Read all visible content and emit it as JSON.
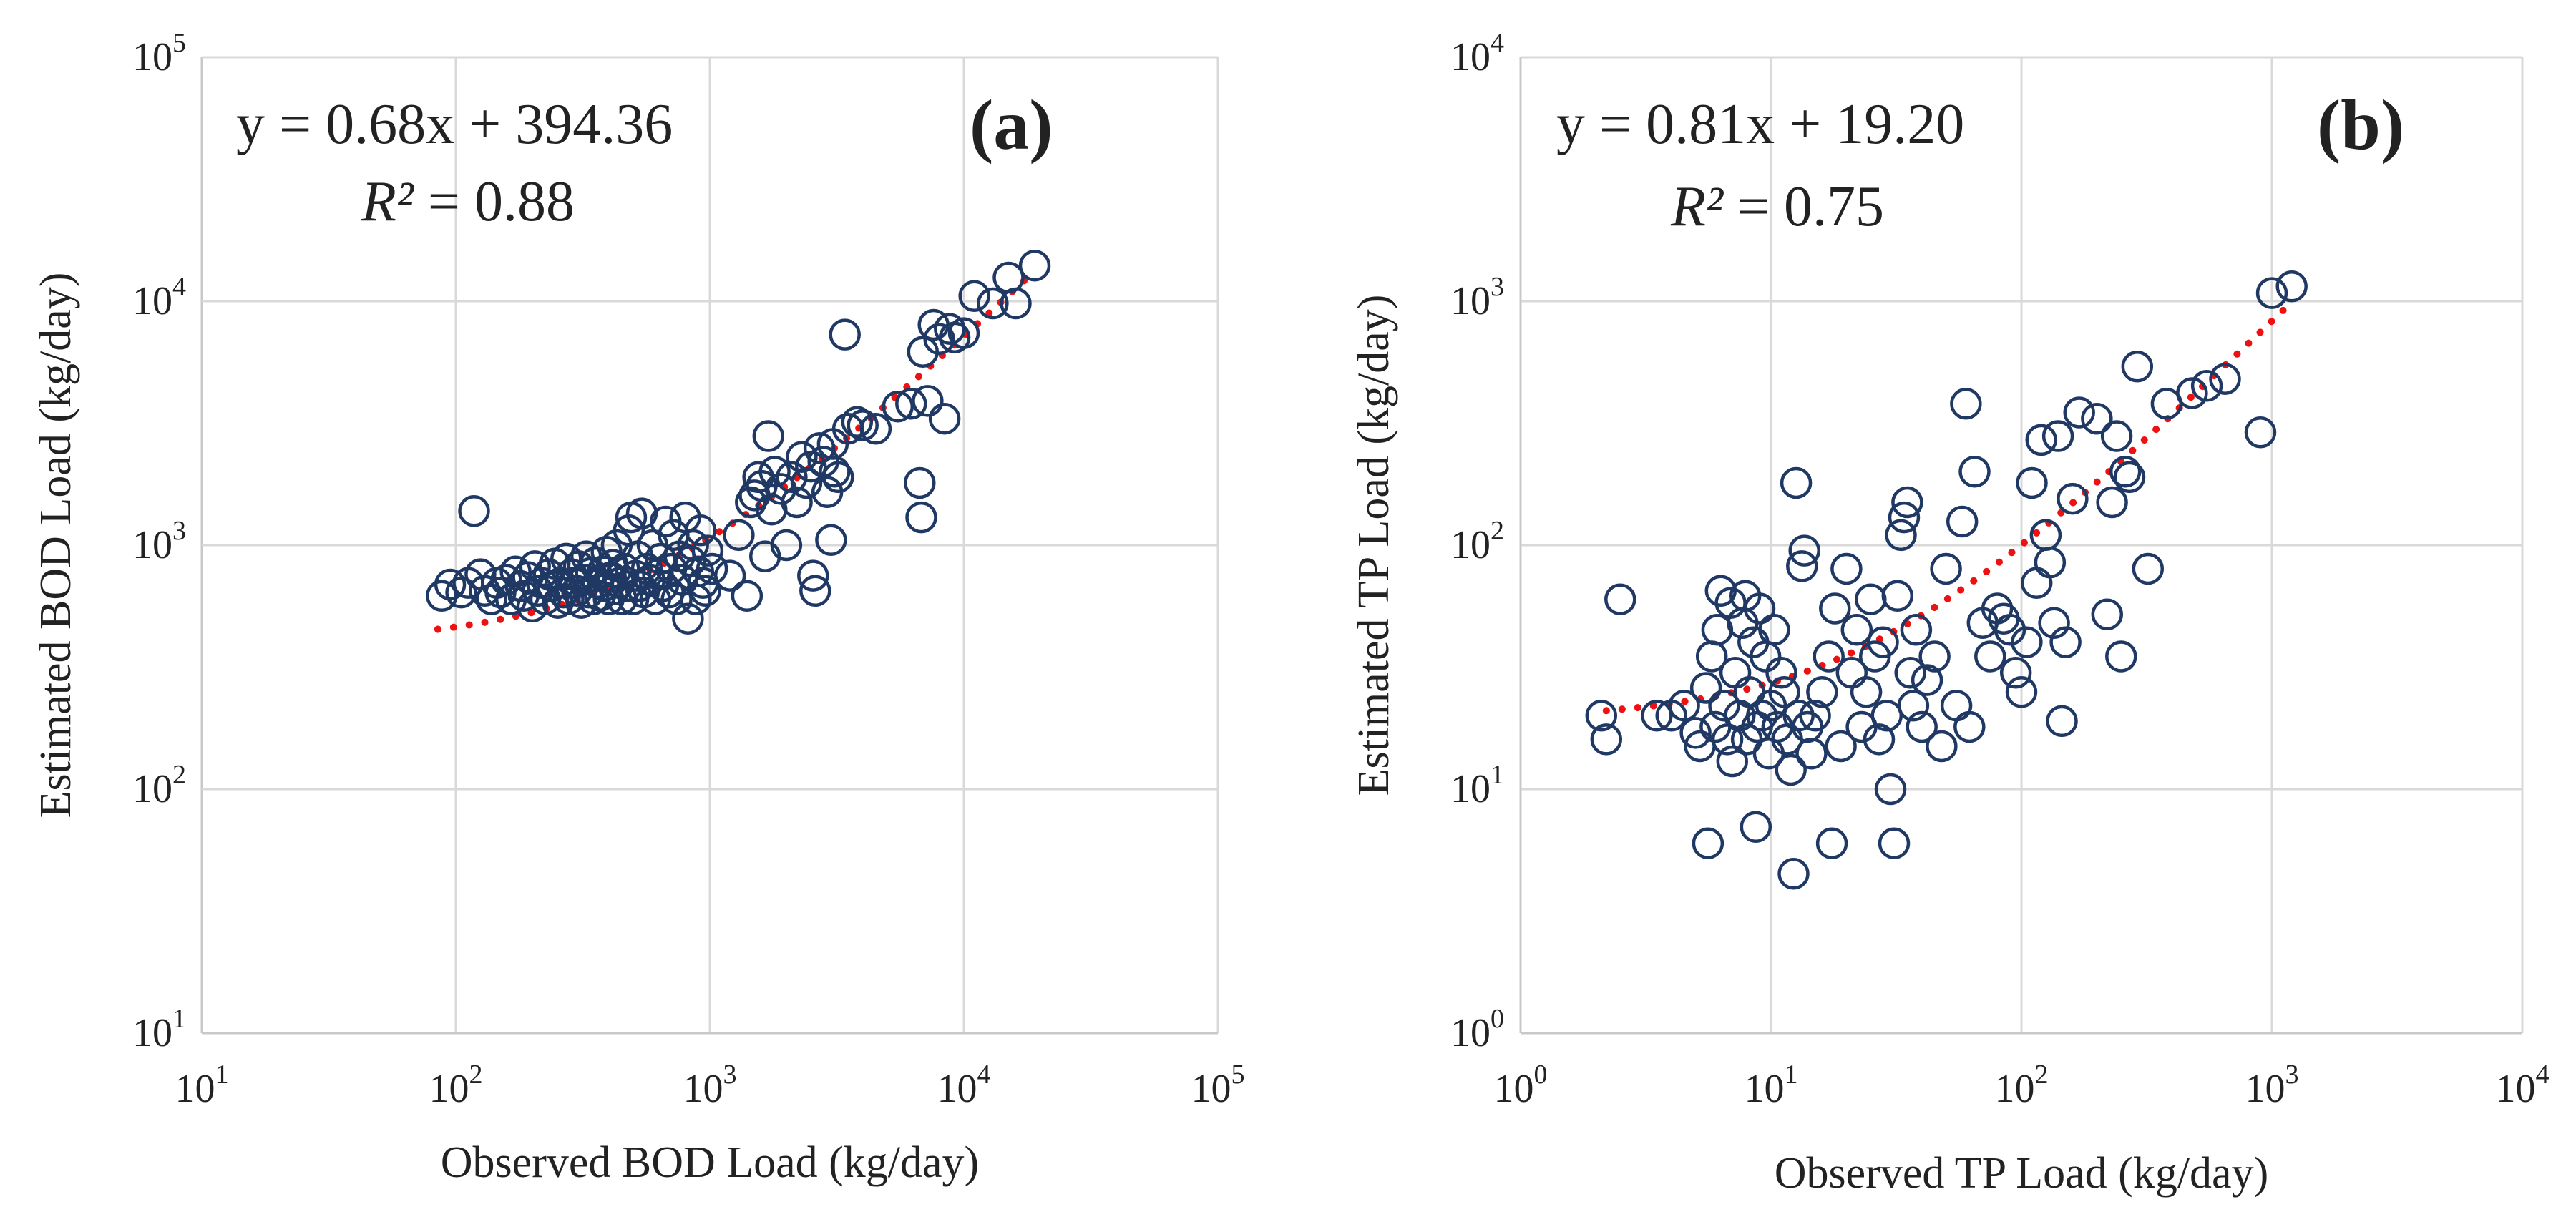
{
  "chart_data": [
    {
      "type": "scatter",
      "xscale": "log",
      "yscale": "log",
      "xlim": [
        10,
        100000
      ],
      "ylim": [
        10,
        100000
      ],
      "xticks": [
        {
          "base": "10",
          "exp": "1"
        },
        {
          "base": "10",
          "exp": "2"
        },
        {
          "base": "10",
          "exp": "3"
        },
        {
          "base": "10",
          "exp": "4"
        },
        {
          "base": "10",
          "exp": "5"
        }
      ],
      "yticks": [
        {
          "base": "10",
          "exp": "1"
        },
        {
          "base": "10",
          "exp": "2"
        },
        {
          "base": "10",
          "exp": "3"
        },
        {
          "base": "10",
          "exp": "4"
        },
        {
          "base": "10",
          "exp": "5"
        }
      ],
      "xlabel": "Observed BOD Load (kg/day)",
      "ylabel": "Estimated BOD Load (kg/day)",
      "panel_label": "(a)",
      "equation": "y = 0.68x + 394.36",
      "r2_symbol": "R²",
      "r2_value": " = 0.88",
      "grid": true,
      "marker_color": "#1f3864",
      "trend_color": "#ee1111",
      "trendline": {
        "slope": 0.68,
        "intercept": 394.36,
        "x_range": [
          85,
          19000
        ]
      },
      "points": [
        [
          88,
          620
        ],
        [
          95,
          690
        ],
        [
          105,
          640
        ],
        [
          112,
          700
        ],
        [
          118,
          1380
        ],
        [
          125,
          760
        ],
        [
          130,
          650
        ],
        [
          138,
          600
        ],
        [
          145,
          700
        ],
        [
          150,
          640
        ],
        [
          158,
          720
        ],
        [
          165,
          600
        ],
        [
          172,
          780
        ],
        [
          180,
          680
        ],
        [
          185,
          620
        ],
        [
          192,
          740
        ],
        [
          200,
          560
        ],
        [
          205,
          820
        ],
        [
          210,
          650
        ],
        [
          218,
          700
        ],
        [
          225,
          600
        ],
        [
          232,
          760
        ],
        [
          240,
          680
        ],
        [
          245,
          840
        ],
        [
          252,
          580
        ],
        [
          258,
          700
        ],
        [
          265,
          640
        ],
        [
          272,
          880
        ],
        [
          278,
          600
        ],
        [
          285,
          760
        ],
        [
          292,
          700
        ],
        [
          300,
          650
        ],
        [
          305,
          820
        ],
        [
          312,
          580
        ],
        [
          320,
          720
        ],
        [
          326,
          900
        ],
        [
          333,
          640
        ],
        [
          340,
          770
        ],
        [
          348,
          600
        ],
        [
          355,
          850
        ],
        [
          362,
          700
        ],
        [
          370,
          620
        ],
        [
          378,
          780
        ],
        [
          385,
          680
        ],
        [
          392,
          940
        ],
        [
          400,
          600
        ],
        [
          408,
          740
        ],
        [
          415,
          830
        ],
        [
          422,
          660
        ],
        [
          430,
          1000
        ],
        [
          440,
          700
        ],
        [
          450,
          600
        ],
        [
          460,
          800
        ],
        [
          470,
          680
        ],
        [
          480,
          1150
        ],
        [
          490,
          1300
        ],
        [
          500,
          600
        ],
        [
          510,
          750
        ],
        [
          520,
          900
        ],
        [
          530,
          680
        ],
        [
          540,
          1350
        ],
        [
          550,
          640
        ],
        [
          565,
          800
        ],
        [
          580,
          720
        ],
        [
          595,
          1000
        ],
        [
          610,
          600
        ],
        [
          625,
          760
        ],
        [
          640,
          880
        ],
        [
          655,
          680
        ],
        [
          670,
          1250
        ],
        [
          690,
          640
        ],
        [
          705,
          800
        ],
        [
          720,
          1100
        ],
        [
          740,
          600
        ],
        [
          760,
          900
        ],
        [
          780,
          720
        ],
        [
          800,
          1300
        ],
        [
          820,
          500
        ],
        [
          840,
          860
        ],
        [
          860,
          1000
        ],
        [
          880,
          600
        ],
        [
          900,
          780
        ],
        [
          920,
          1150
        ],
        [
          940,
          700
        ],
        [
          960,
          650
        ],
        [
          980,
          950
        ],
        [
          1020,
          800
        ],
        [
          1200,
          750
        ],
        [
          1300,
          1100
        ],
        [
          1400,
          620
        ],
        [
          1450,
          1500
        ],
        [
          1500,
          1600
        ],
        [
          1550,
          1900
        ],
        [
          1600,
          1750
        ],
        [
          1650,
          900
        ],
        [
          1700,
          2800
        ],
        [
          1750,
          1400
        ],
        [
          1800,
          2000
        ],
        [
          1900,
          1700
        ],
        [
          2000,
          1000
        ],
        [
          2100,
          1900
        ],
        [
          2200,
          1500
        ],
        [
          2300,
          2300
        ],
        [
          2400,
          1800
        ],
        [
          2500,
          2100
        ],
        [
          2550,
          750
        ],
        [
          2600,
          650
        ],
        [
          2700,
          2500
        ],
        [
          2800,
          2200
        ],
        [
          2900,
          1650
        ],
        [
          3000,
          1050
        ],
        [
          3050,
          2600
        ],
        [
          3100,
          2000
        ],
        [
          3200,
          1900
        ],
        [
          3400,
          7300
        ],
        [
          3500,
          3000
        ],
        [
          3800,
          3200
        ],
        [
          4000,
          3100
        ],
        [
          4500,
          3000
        ],
        [
          5500,
          3700
        ],
        [
          6200,
          3800
        ],
        [
          6700,
          1800
        ],
        [
          6800,
          1300
        ],
        [
          6900,
          6200
        ],
        [
          7200,
          3900
        ],
        [
          7600,
          8000
        ],
        [
          8000,
          7000
        ],
        [
          8400,
          3300
        ],
        [
          8800,
          7700
        ],
        [
          9200,
          7100
        ],
        [
          10000,
          7400
        ],
        [
          11000,
          10500
        ],
        [
          13000,
          9800
        ],
        [
          15000,
          12500
        ],
        [
          16000,
          9800
        ],
        [
          19000,
          14000
        ]
      ]
    },
    {
      "type": "scatter",
      "xscale": "log",
      "yscale": "log",
      "xlim": [
        1,
        10000
      ],
      "ylim": [
        1,
        10000
      ],
      "xticks": [
        {
          "base": "10",
          "exp": "0"
        },
        {
          "base": "10",
          "exp": "1"
        },
        {
          "base": "10",
          "exp": "2"
        },
        {
          "base": "10",
          "exp": "3"
        },
        {
          "base": "10",
          "exp": "4"
        }
      ],
      "yticks": [
        {
          "base": "10",
          "exp": "0"
        },
        {
          "base": "10",
          "exp": "1"
        },
        {
          "base": "10",
          "exp": "2"
        },
        {
          "base": "10",
          "exp": "3"
        },
        {
          "base": "10",
          "exp": "4"
        }
      ],
      "xlabel": "Observed TP Load (kg/day)",
      "ylabel": "Estimated TP Load (kg/day)",
      "panel_label": "(b)",
      "equation": "y = 0.81x + 19.20",
      "r2_symbol": "R²",
      "r2_value": " = 0.75",
      "grid": true,
      "marker_color": "#1f3864",
      "trend_color": "#ee1111",
      "trendline": {
        "slope": 0.81,
        "intercept": 19.2,
        "x_range": [
          2.2,
          1150
        ]
      },
      "points": [
        [
          2.1,
          20
        ],
        [
          2.2,
          16
        ],
        [
          2.5,
          60
        ],
        [
          3.5,
          20
        ],
        [
          4.0,
          20
        ],
        [
          4.5,
          22
        ],
        [
          5.0,
          17
        ],
        [
          5.2,
          15
        ],
        [
          5.5,
          26
        ],
        [
          5.6,
          6
        ],
        [
          5.8,
          35
        ],
        [
          6.0,
          18
        ],
        [
          6.1,
          45
        ],
        [
          6.3,
          65
        ],
        [
          6.5,
          22
        ],
        [
          6.7,
          16
        ],
        [
          6.9,
          58
        ],
        [
          7.0,
          13
        ],
        [
          7.2,
          30
        ],
        [
          7.5,
          20
        ],
        [
          7.7,
          48
        ],
        [
          7.9,
          62
        ],
        [
          8.0,
          16
        ],
        [
          8.2,
          25
        ],
        [
          8.5,
          40
        ],
        [
          8.7,
          7
        ],
        [
          8.8,
          18
        ],
        [
          9.0,
          55
        ],
        [
          9.2,
          20
        ],
        [
          9.5,
          35
        ],
        [
          9.8,
          14
        ],
        [
          10.0,
          22
        ],
        [
          10.3,
          45
        ],
        [
          10.6,
          18
        ],
        [
          11.0,
          30
        ],
        [
          11.3,
          25
        ],
        [
          11.6,
          16
        ],
        [
          12.0,
          12
        ],
        [
          12.3,
          4.5
        ],
        [
          12.6,
          180
        ],
        [
          12.9,
          20
        ],
        [
          13.3,
          82
        ],
        [
          13.6,
          95
        ],
        [
          14.0,
          18
        ],
        [
          14.5,
          14
        ],
        [
          15.0,
          20
        ],
        [
          16.0,
          25
        ],
        [
          17.0,
          35
        ],
        [
          17.5,
          6
        ],
        [
          18.0,
          55
        ],
        [
          19.0,
          15
        ],
        [
          20.0,
          80
        ],
        [
          21.0,
          30
        ],
        [
          22.0,
          45
        ],
        [
          23.0,
          18
        ],
        [
          24.0,
          25
        ],
        [
          25.0,
          60
        ],
        [
          26.0,
          35
        ],
        [
          27.0,
          16
        ],
        [
          28.0,
          40
        ],
        [
          29.0,
          20
        ],
        [
          30.0,
          10
        ],
        [
          31.0,
          6
        ],
        [
          32.0,
          62
        ],
        [
          33.0,
          110
        ],
        [
          34.0,
          130
        ],
        [
          35.0,
          150
        ],
        [
          36.0,
          30
        ],
        [
          37.0,
          22
        ],
        [
          38.0,
          45
        ],
        [
          40.0,
          18
        ],
        [
          42.0,
          28
        ],
        [
          45.0,
          35
        ],
        [
          48.0,
          15
        ],
        [
          50.0,
          80
        ],
        [
          55.0,
          22
        ],
        [
          58.0,
          125
        ],
        [
          60.0,
          380
        ],
        [
          62.0,
          18
        ],
        [
          65.0,
          200
        ],
        [
          70.0,
          48
        ],
        [
          75.0,
          35
        ],
        [
          80.0,
          55
        ],
        [
          85.0,
          50
        ],
        [
          90.0,
          45
        ],
        [
          95.0,
          30
        ],
        [
          100.0,
          25
        ],
        [
          105.0,
          40
        ],
        [
          110.0,
          180
        ],
        [
          115.0,
          70
        ],
        [
          120.0,
          270
        ],
        [
          125.0,
          110
        ],
        [
          130.0,
          85
        ],
        [
          135.0,
          48
        ],
        [
          140.0,
          280
        ],
        [
          145.0,
          19
        ],
        [
          150.0,
          40
        ],
        [
          160.0,
          155
        ],
        [
          170.0,
          350
        ],
        [
          200.0,
          330
        ],
        [
          220.0,
          52
        ],
        [
          230.0,
          150
        ],
        [
          240.0,
          280
        ],
        [
          250.0,
          35
        ],
        [
          260.0,
          200
        ],
        [
          270.0,
          190
        ],
        [
          290.0,
          540
        ],
        [
          320.0,
          80
        ],
        [
          380.0,
          380
        ],
        [
          480.0,
          420
        ],
        [
          550.0,
          450
        ],
        [
          650.0,
          480
        ],
        [
          900.0,
          290
        ],
        [
          1000.0,
          1080
        ],
        [
          1200.0,
          1150
        ]
      ]
    }
  ]
}
